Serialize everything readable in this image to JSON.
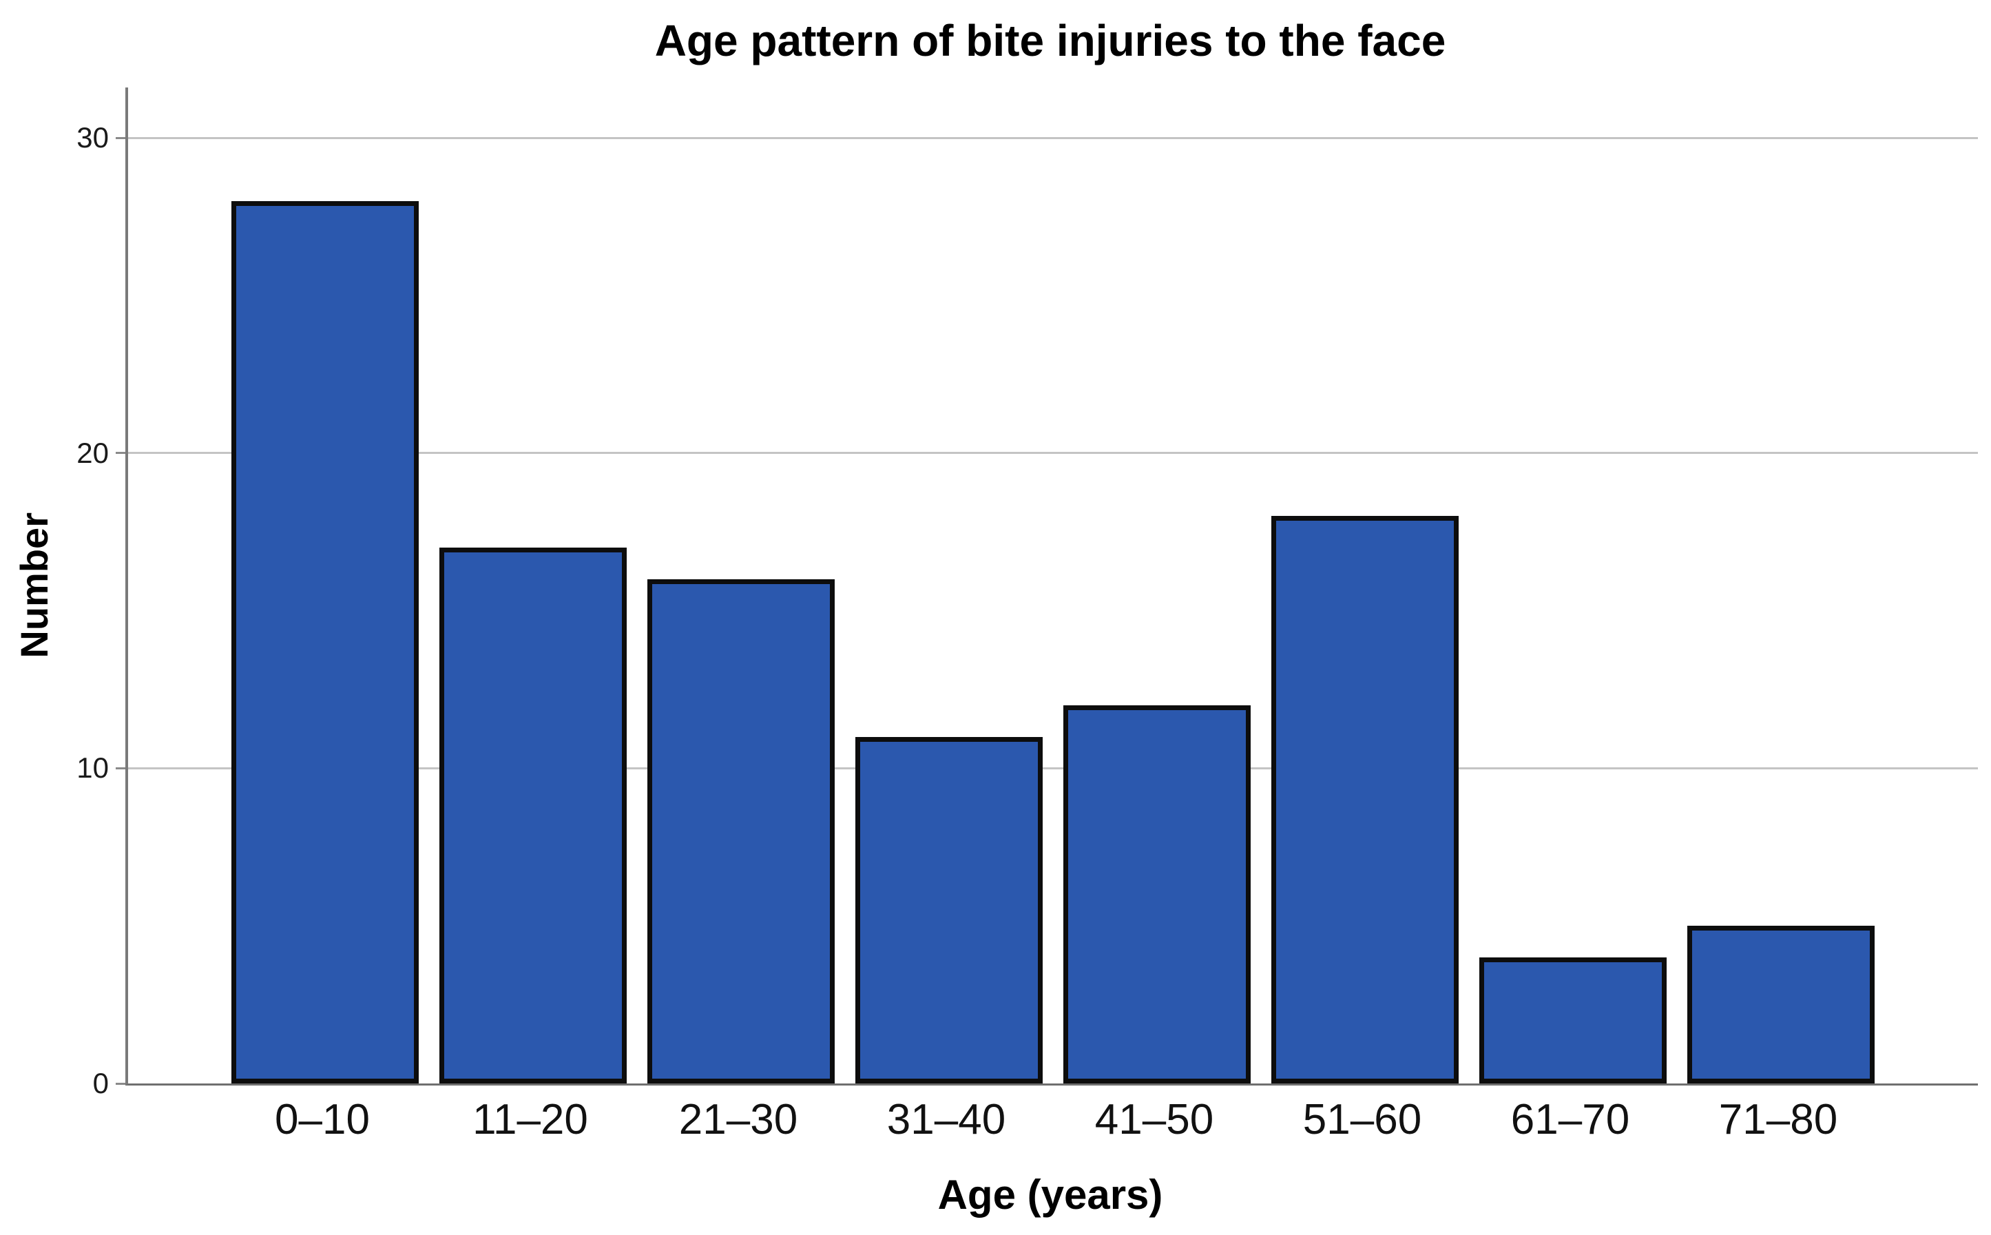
{
  "chart_data": {
    "type": "bar",
    "title": "Age pattern of bite injuries to the face",
    "xlabel": "Age (years)",
    "ylabel": "Number",
    "categories": [
      "0–10",
      "11–20",
      "21–30",
      "31–40",
      "41–50",
      "51–60",
      "61–70",
      "71–80"
    ],
    "values": [
      28,
      17,
      16,
      11,
      12,
      18,
      4,
      5
    ],
    "yticks": [
      0,
      10,
      20,
      30
    ],
    "ylim": [
      0,
      31.6
    ],
    "grid": "horizontal",
    "legend_position": "none",
    "colors": {
      "bar_fill": "#2B58AE",
      "bar_border": "#0d0d0d",
      "gridline": "#c4c4c4",
      "axis_line": "#7a7a7a",
      "tick_label": "#1a1a1a",
      "title_text": "#000000",
      "background": "#ffffff"
    }
  }
}
